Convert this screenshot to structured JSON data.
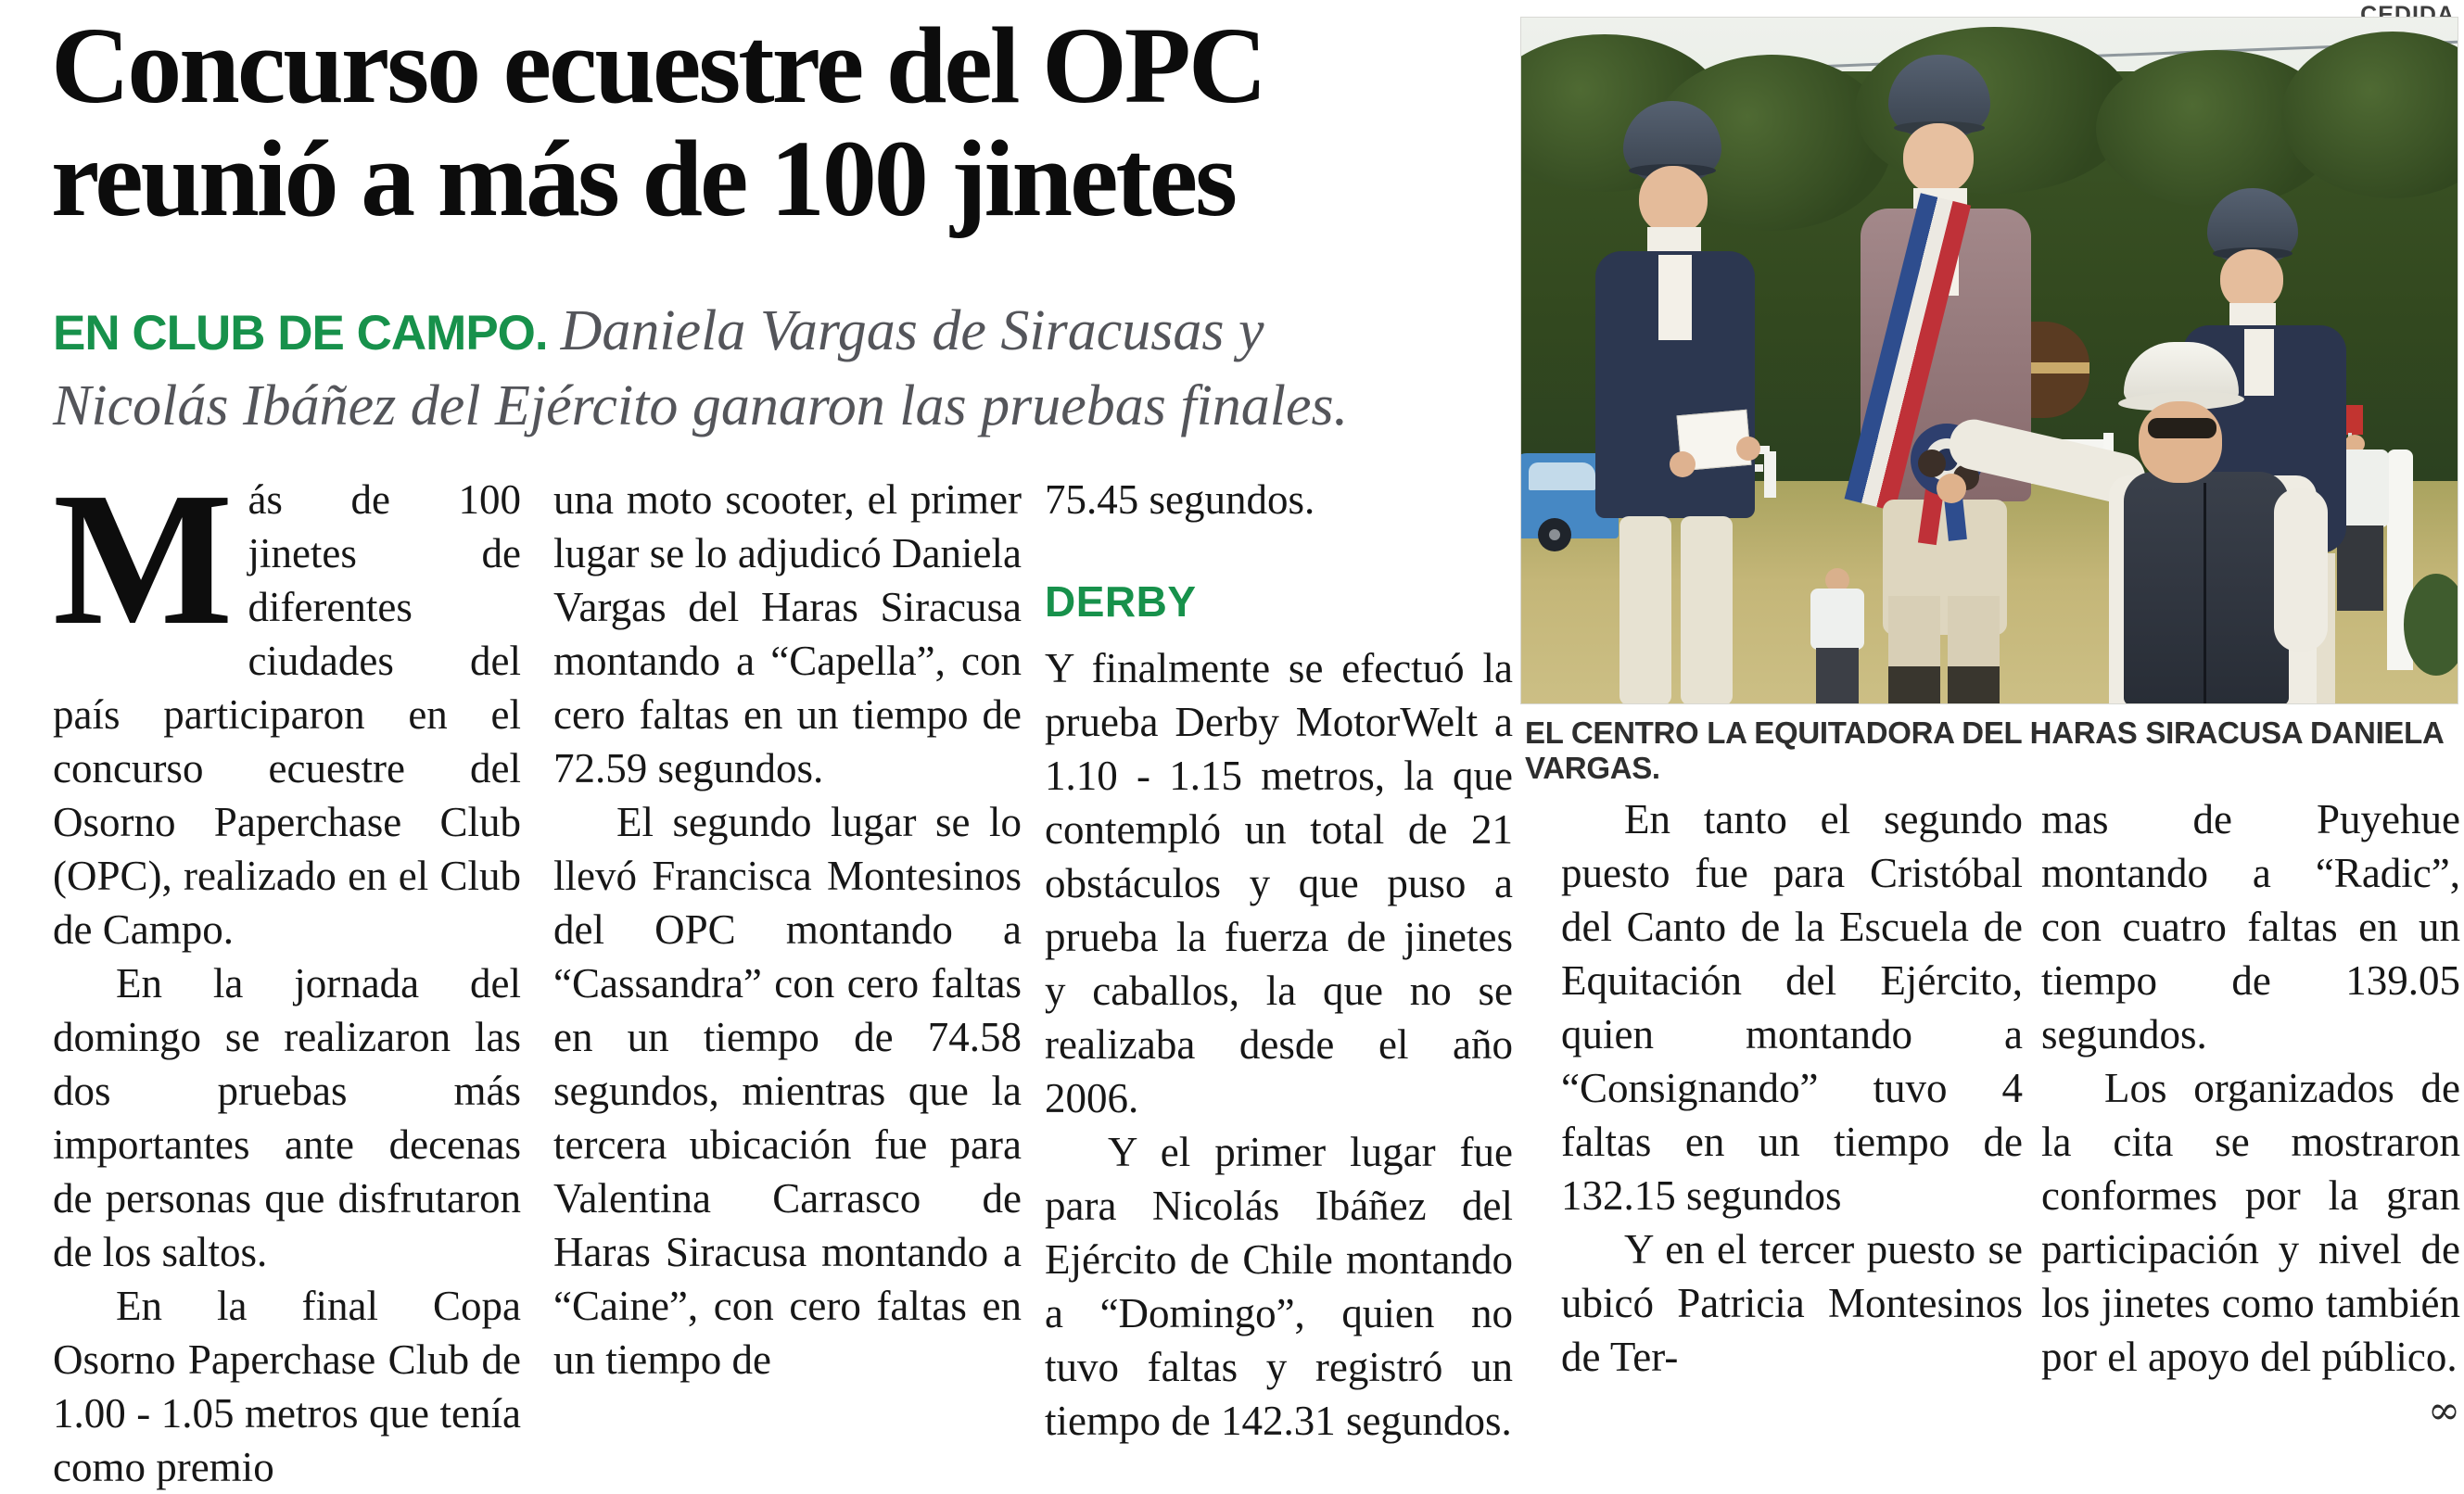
{
  "credit": "CEDIDA",
  "headline": {
    "line1": "Concurso ecuestre del OPC",
    "line2": "reunió a más de 100 jinetes"
  },
  "deck": {
    "kicker": "EN CLUB DE CAMPO.",
    "text": "Daniela Vargas de Siracusas y Nicolás Ibáñez del Ejército ganaron las pruebas finales."
  },
  "photo": {
    "caption": "EL CENTRO LA EQUITADORA DEL HARAS SIRACUSA DANIELA VARGAS.",
    "scene": "Tres jinetes con casco y un hombre de jockey blanco y chaleco oscuro en premiación; auto azul, árboles y obstáculos de salto al fondo"
  },
  "article": {
    "dropcap": "M",
    "col1": {
      "p1": "ás de 100 jinetes de diferentes ciudades del país participaron en el concurso ecuestre del Osorno Paperchase Club (OPC), realizado en el Club de Campo.",
      "p2": "En la jornada del domingo se realizaron las dos pruebas más importantes ante decenas de personas que disfrutaron de los saltos.",
      "p3": "En la final Copa Osorno Paperchase Club de 1.00 - 1.05 metros que tenía como premio"
    },
    "col2": {
      "p1": "una moto scooter, el primer lugar se lo adjudicó Daniela Vargas del Haras Siracusa montando a “Capella”, con cero faltas en un tiempo de 72.59 segundos.",
      "p2": "El segundo lugar se lo llevó Francisca Montesinos del OPC montando a “Cassandra” con cero faltas en un tiempo de 74.58 segundos, mientras que la tercera ubicación fue para Valentina Carrasco de Haras Siracusa montando a “Caine”, con cero faltas en un tiempo de"
    },
    "col3": {
      "p1": "75.45 segundos.",
      "heading": "DERBY",
      "p2": "Y finalmente se efectuó la prueba Derby MotorWelt a 1.10 - 1.15 metros, la que contempló un total de 21 obstáculos y que puso a prueba la fuerza de jinetes y caballos, la que no se realizaba desde el año 2006.",
      "p3": "Y el primer lugar fue para Nicolás Ibáñez del Ejército de Chile montando a “Domingo”, quien no tuvo faltas y registró un tiempo de 142.31 segundos."
    },
    "col4": {
      "p1": "En tanto el segundo puesto fue para Cristóbal del Canto de la Escuela de Equitación del Ejército, quien montando a “Consignando” tuvo 4 faltas en un tiempo de 132.15 segundos",
      "p2": "Y en el tercer puesto se ubicó Patricia Montesinos de Ter-"
    },
    "col5": {
      "p1": "mas de Puyehue montando a “Radic”, con cuatro faltas en un tiempo de 139.05 segundos.",
      "p2": "Los organizados de la cita se mostraron conformes por la gran participación y nivel de los jinetes como también por el apoyo del público."
    },
    "end_mark": "∞"
  },
  "colors": {
    "accent_green": "#17914b",
    "deck_gray": "#54555a",
    "body_text": "#171717"
  }
}
